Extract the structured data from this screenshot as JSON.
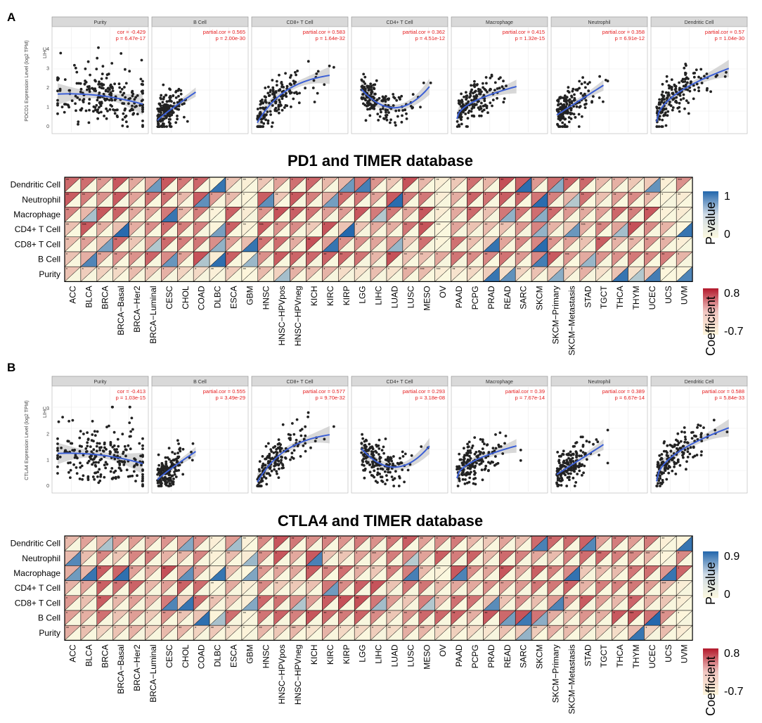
{
  "panels": [
    {
      "letter": "A",
      "gene": "PD1",
      "scatter": {
        "ylabel": "PDCD1 Expression Level (log2 TPM)",
        "row_label": "LIHC",
        "y_ticks": [
          "0",
          "1",
          "2",
          "3",
          "4"
        ],
        "facets": [
          {
            "name": "Purity",
            "stat_label": "cor = -0.429",
            "p_label": "p = 6.47e-17"
          },
          {
            "name": "B Cell",
            "stat_label": "partial.cor = 0.565",
            "p_label": "p = 2.00e-30"
          },
          {
            "name": "CD8+ T Cell",
            "stat_label": "partial.cor = 0.583",
            "p_label": "p = 1.64e-32"
          },
          {
            "name": "CD4+ T Cell",
            "stat_label": "partial.cor = 0.362",
            "p_label": "p = 4.51e-12"
          },
          {
            "name": "Macrophage",
            "stat_label": "partial.cor = 0.415",
            "p_label": "p = 1.32e-15"
          },
          {
            "name": "Neutrophil",
            "stat_label": "partial.cor = 0.358",
            "p_label": "p = 6.91e-12"
          },
          {
            "name": "Dendritic Cell",
            "stat_label": "partial.cor = 0.57",
            "p_label": "p = 1.04e-30"
          }
        ]
      },
      "heatmap": {
        "title": "PD1 and TIMER database",
        "pvalue_max": "1",
        "pvalue_min": "0",
        "coef_max": "0.8",
        "coef_min": "-0.7"
      }
    },
    {
      "letter": "B",
      "gene": "CTLA4",
      "scatter": {
        "ylabel": "CTLA4 Expression Level (log2 TPM)",
        "row_label": "LIHC",
        "y_ticks": [
          "0",
          "1",
          "2",
          "3"
        ],
        "facets": [
          {
            "name": "Purity",
            "stat_label": "cor = -0.413",
            "p_label": "p = 1.03e-15"
          },
          {
            "name": "B Cell",
            "stat_label": "partial.cor = 0.555",
            "p_label": "p = 3.49e-29"
          },
          {
            "name": "CD8+ T Cell",
            "stat_label": "partial.cor = 0.577",
            "p_label": "p = 9.70e-32"
          },
          {
            "name": "CD4+ T Cell",
            "stat_label": "partial.cor = 0.293",
            "p_label": "p = 3.18e-08"
          },
          {
            "name": "Macrophage",
            "stat_label": "partial.cor = 0.39",
            "p_label": "p = 7.67e-14"
          },
          {
            "name": "Neutrophil",
            "stat_label": "partial.cor = 0.389",
            "p_label": "p = 6.67e-14"
          },
          {
            "name": "Dendritic Cell",
            "stat_label": "partial.cor = 0.588",
            "p_label": "p = 5.84e-33"
          }
        ]
      },
      "heatmap": {
        "title": "CTLA4 and TIMER database",
        "pvalue_max": "0.9",
        "pvalue_min": "0",
        "coef_max": "0.8",
        "coef_min": "-0.7"
      }
    }
  ],
  "heatmap_rows": [
    "Dendritic Cell",
    "Neutrophil",
    "Macrophage",
    "CD4+ T Cell",
    "CD8+ T Cell",
    "B Cell",
    "Purity"
  ],
  "heatmap_cols": [
    "ACC",
    "BLCA",
    "BRCA",
    "BRCA−Basal",
    "BRCA−Her2",
    "BRCA−Luminal",
    "CESC",
    "CHOL",
    "COAD",
    "DLBC",
    "ESCA",
    "GBM",
    "HNSC",
    "HNSC−HPVpos",
    "HNSC−HPVneg",
    "KICH",
    "KIRC",
    "KIRP",
    "LGG",
    "LIHC",
    "LUAD",
    "LUSC",
    "MESO",
    "OV",
    "PAAD",
    "PCPG",
    "PRAD",
    "READ",
    "SARC",
    "SKCM",
    "SKCM−Primary",
    "SKCM−Metastasis",
    "STAD",
    "TGCT",
    "THCA",
    "THYM",
    "UCEC",
    "UCS",
    "UVM"
  ],
  "legend": {
    "pvalue_title": "P-value",
    "coef_title": "Coefficient"
  },
  "colors": {
    "coef_high": "#b2182b",
    "coef_low": "#fdf6dc",
    "pvalue_high": "#2166ac",
    "pvalue_low": "#fbf8df",
    "trend_line": "#3b5fd6",
    "confidence_band": "#c8c8c8",
    "stat_text": "#e41a1c",
    "facet_strip": "#d9d9d9"
  },
  "chart_data": [
    {
      "type": "scatter",
      "title": "",
      "ylabel": "PDCD1 Expression Level (log2 TPM)",
      "facets": [
        "Purity",
        "B Cell",
        "CD8+ T Cell",
        "CD4+ T Cell",
        "Macrophage",
        "Neutrophil",
        "Dendritic Cell"
      ],
      "ylim": [
        0,
        5
      ],
      "series": [
        {
          "name": "Purity",
          "cor": -0.429,
          "p": "6.47e-17"
        },
        {
          "name": "B Cell",
          "cor": 0.565,
          "p": "2.00e-30"
        },
        {
          "name": "CD8+ T Cell",
          "cor": 0.583,
          "p": "1.64e-32"
        },
        {
          "name": "CD4+ T Cell",
          "cor": 0.362,
          "p": "4.51e-12"
        },
        {
          "name": "Macrophage",
          "cor": 0.415,
          "p": "1.32e-15"
        },
        {
          "name": "Neutrophil",
          "cor": 0.358,
          "p": "6.91e-12"
        },
        {
          "name": "Dendritic Cell",
          "cor": 0.57,
          "p": "1.04e-30"
        }
      ]
    },
    {
      "type": "heatmap",
      "title": "PD1 and TIMER database",
      "rows": [
        "Dendritic Cell",
        "Neutrophil",
        "Macrophage",
        "CD4+ T Cell",
        "CD8+ T Cell",
        "B Cell",
        "Purity"
      ],
      "coefficient_range": [
        -0.7,
        0.8
      ],
      "pvalue_range": [
        0,
        1
      ]
    },
    {
      "type": "scatter",
      "title": "",
      "ylabel": "CTLA4 Expression Level (log2 TPM)",
      "facets": [
        "Purity",
        "B Cell",
        "CD8+ T Cell",
        "CD4+ T Cell",
        "Macrophage",
        "Neutrophil",
        "Dendritic Cell"
      ],
      "ylim": [
        0,
        3.8
      ],
      "series": [
        {
          "name": "Purity",
          "cor": -0.413,
          "p": "1.03e-15"
        },
        {
          "name": "B Cell",
          "cor": 0.555,
          "p": "3.49e-29"
        },
        {
          "name": "CD8+ T Cell",
          "cor": 0.577,
          "p": "9.70e-32"
        },
        {
          "name": "CD4+ T Cell",
          "cor": 0.293,
          "p": "3.18e-08"
        },
        {
          "name": "Macrophage",
          "cor": 0.39,
          "p": "7.67e-14"
        },
        {
          "name": "Neutrophil",
          "cor": 0.389,
          "p": "6.67e-14"
        },
        {
          "name": "Dendritic Cell",
          "cor": 0.588,
          "p": "5.84e-33"
        }
      ]
    },
    {
      "type": "heatmap",
      "title": "CTLA4 and TIMER database",
      "rows": [
        "Dendritic Cell",
        "Neutrophil",
        "Macrophage",
        "CD4+ T Cell",
        "CD8+ T Cell",
        "B Cell",
        "Purity"
      ],
      "coefficient_range": [
        -0.7,
        0.8
      ],
      "pvalue_range": [
        0,
        0.9
      ]
    }
  ]
}
